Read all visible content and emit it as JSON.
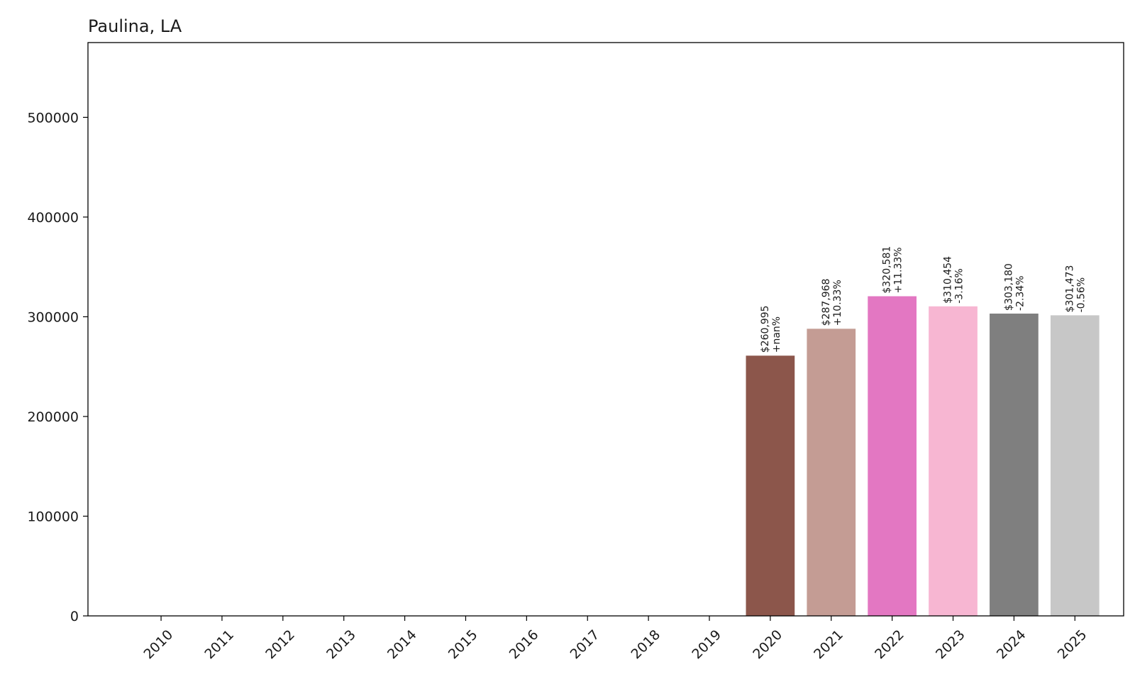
{
  "chart_data": {
    "type": "bar",
    "title": "Paulina, LA",
    "xlabel": "",
    "ylabel": "",
    "categories": [
      "2010",
      "2011",
      "2012",
      "2013",
      "2014",
      "2015",
      "2016",
      "2017",
      "2018",
      "2019",
      "2020",
      "2021",
      "2022",
      "2023",
      "2024",
      "2025"
    ],
    "values": [
      0,
      0,
      0,
      0,
      0,
      0,
      0,
      0,
      0,
      0,
      260995,
      287968,
      320581,
      310454,
      303180,
      301473
    ],
    "value_labels": [
      "",
      "",
      "",
      "",
      "",
      "",
      "",
      "",
      "",
      "",
      "$260,995",
      "$287,968",
      "$320,581",
      "$310,454",
      "$303,180",
      "$301,473"
    ],
    "change_labels": [
      "",
      "",
      "",
      "",
      "",
      "",
      "",
      "",
      "",
      "",
      "+nan%",
      "+10.33%",
      "+11.33%",
      "-3.16%",
      "-2.34%",
      "-0.56%"
    ],
    "colors": [
      "#1f77b4",
      "#ff7f0e",
      "#2ca02c",
      "#d62728",
      "#9467bd",
      "#8c564b",
      "#e377c2",
      "#7f7f7f",
      "#bcbd22",
      "#17becf",
      "#8c564b",
      "#c49c94",
      "#e377c2",
      "#f7b6d2",
      "#7f7f7f",
      "#c7c7c7"
    ],
    "yticks": [
      0,
      100000,
      200000,
      300000,
      400000,
      500000
    ],
    "ytick_labels": [
      "0",
      "100000",
      "200000",
      "300000",
      "400000",
      "500000"
    ],
    "ylim": [
      0,
      575000
    ],
    "grid": false,
    "legend": "none"
  }
}
